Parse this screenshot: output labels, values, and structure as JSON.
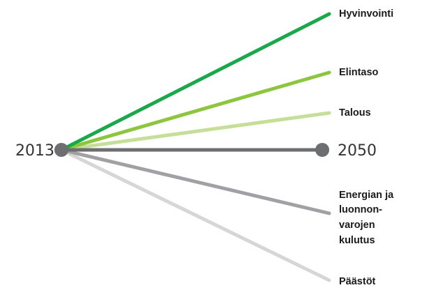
{
  "start_year": "2013",
  "end_year": "2050",
  "branches": [
    {
      "label_lines": [
        "Hyvinvointi"
      ],
      "color": "#1aa84b"
    },
    {
      "label_lines": [
        "Elintaso"
      ],
      "color": "#8cc63f"
    },
    {
      "label_lines": [
        "Talous"
      ],
      "color": "#c5df98"
    },
    {
      "label_lines": [
        "Energian ja",
        "luonnon-",
        "varojen",
        "kulutus"
      ],
      "color": "#a0a0a5"
    },
    {
      "label_lines": [
        "Päästöt"
      ],
      "color": "#d6d6d6"
    }
  ],
  "baseline_color": "#6d6e72"
}
